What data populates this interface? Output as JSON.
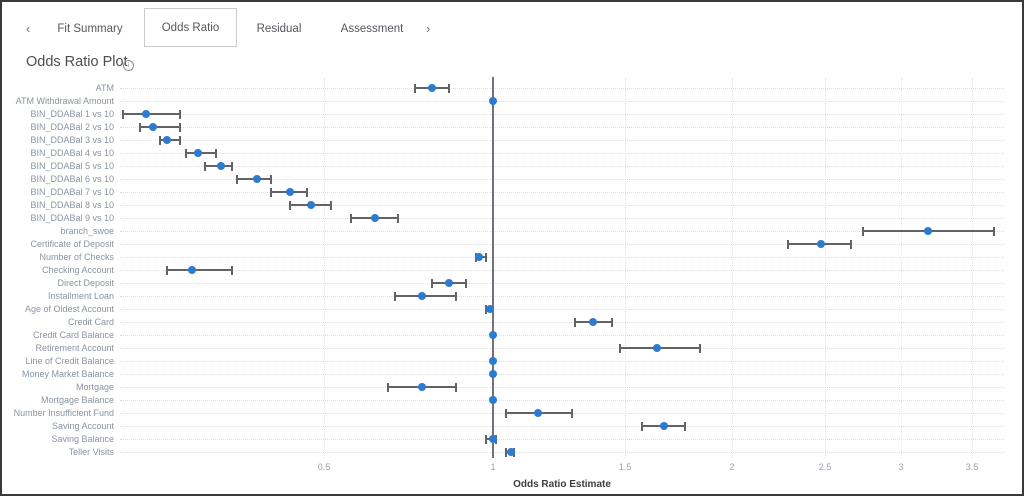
{
  "window": {
    "background": "#ffffff",
    "border_color": "#3a3a3a"
  },
  "tabbar": {
    "prev_icon": "‹",
    "next_icon": "›",
    "tabs": [
      {
        "label": "Fit Summary",
        "active": false
      },
      {
        "label": "Odds Ratio",
        "active": true
      },
      {
        "label": "Residual",
        "active": false
      },
      {
        "label": "Assessment",
        "active": false
      }
    ]
  },
  "header": {
    "title": "Odds Ratio Plot",
    "info_icon": "i"
  },
  "chart_data": {
    "type": "scatter",
    "subtype": "odds-ratio-forest-plot",
    "title": "Odds Ratio Plot",
    "xlabel": "Odds Ratio Estimate",
    "x_ticks": [
      0.5,
      1,
      1.5,
      2,
      2.5,
      3,
      3.5
    ],
    "x_scale": "nonlinear-compressing (log-like)",
    "xlim": [
      0.1,
      3.8
    ],
    "reference_line_x": 1,
    "grid": "vertical-dotted",
    "legend": "none",
    "colors": {
      "marker": "#2b7bd0",
      "error_bar": "#606468",
      "reference_line": "#70747a",
      "row_label": "#8a94a2"
    },
    "rows": [
      {
        "label": "ATM",
        "estimate": 0.82,
        "ci_low": 0.77,
        "ci_high": 0.87
      },
      {
        "label": "ATM Withdrawal Amount",
        "estimate": 1.0,
        "ci_low": 1.0,
        "ci_high": 1.0
      },
      {
        "label": "BIN_DDABal 1 vs 10",
        "estimate": 0.16,
        "ci_low": 0.13,
        "ci_high": 0.21
      },
      {
        "label": "BIN_DDABal 2 vs 10",
        "estimate": 0.17,
        "ci_low": 0.15,
        "ci_high": 0.21
      },
      {
        "label": "BIN_DDABal 3 vs 10",
        "estimate": 0.19,
        "ci_low": 0.18,
        "ci_high": 0.21
      },
      {
        "label": "BIN_DDABal 4 vs 10",
        "estimate": 0.24,
        "ci_low": 0.22,
        "ci_high": 0.27
      },
      {
        "label": "BIN_DDABal 5 vs 10",
        "estimate": 0.28,
        "ci_low": 0.25,
        "ci_high": 0.3
      },
      {
        "label": "BIN_DDABal 6 vs 10",
        "estimate": 0.35,
        "ci_low": 0.31,
        "ci_high": 0.38
      },
      {
        "label": "BIN_DDABal 7 vs 10",
        "estimate": 0.42,
        "ci_low": 0.38,
        "ci_high": 0.46
      },
      {
        "label": "BIN_DDABal 8 vs 10",
        "estimate": 0.47,
        "ci_low": 0.42,
        "ci_high": 0.52
      },
      {
        "label": "BIN_DDABal 9 vs 10",
        "estimate": 0.65,
        "ci_low": 0.58,
        "ci_high": 0.72
      },
      {
        "label": "branch_swoe",
        "estimate": 3.19,
        "ci_low": 2.75,
        "ci_high": 3.67
      },
      {
        "label": "Certificate of Deposit",
        "estimate": 2.48,
        "ci_low": 2.3,
        "ci_high": 2.67
      },
      {
        "label": "Number of Checks",
        "estimate": 0.96,
        "ci_low": 0.95,
        "ci_high": 0.98
      },
      {
        "label": "Checking Account",
        "estimate": 0.23,
        "ci_low": 0.19,
        "ci_high": 0.3
      },
      {
        "label": "Direct Deposit",
        "estimate": 0.87,
        "ci_low": 0.82,
        "ci_high": 0.92
      },
      {
        "label": "Installment Loan",
        "estimate": 0.79,
        "ci_low": 0.71,
        "ci_high": 0.89
      },
      {
        "label": "Age of Oldest Account",
        "estimate": 0.99,
        "ci_low": 0.98,
        "ci_high": 1.0
      },
      {
        "label": "Credit Card",
        "estimate": 1.38,
        "ci_low": 1.31,
        "ci_high": 1.45
      },
      {
        "label": "Credit Card Balance",
        "estimate": 1.0,
        "ci_low": 1.0,
        "ci_high": 1.0
      },
      {
        "label": "Retirement Account",
        "estimate": 1.65,
        "ci_low": 1.48,
        "ci_high": 1.85
      },
      {
        "label": "Line of Credit Balance",
        "estimate": 1.0,
        "ci_low": 1.0,
        "ci_high": 1.0
      },
      {
        "label": "Money Market Balance",
        "estimate": 1.0,
        "ci_low": 1.0,
        "ci_high": 1.0
      },
      {
        "label": "Mortgage",
        "estimate": 0.79,
        "ci_low": 0.69,
        "ci_high": 0.89
      },
      {
        "label": "Mortgage Balance",
        "estimate": 1.0,
        "ci_low": 1.0,
        "ci_high": 1.0
      },
      {
        "label": "Number Insufficient Fund",
        "estimate": 1.17,
        "ci_low": 1.05,
        "ci_high": 1.3
      },
      {
        "label": "Saving Account",
        "estimate": 1.68,
        "ci_low": 1.58,
        "ci_high": 1.78
      },
      {
        "label": "Saving Balance",
        "estimate": 1.0,
        "ci_low": 0.98,
        "ci_high": 1.01
      },
      {
        "label": "Teller Visits",
        "estimate": 1.07,
        "ci_low": 1.05,
        "ci_high": 1.08
      }
    ]
  }
}
